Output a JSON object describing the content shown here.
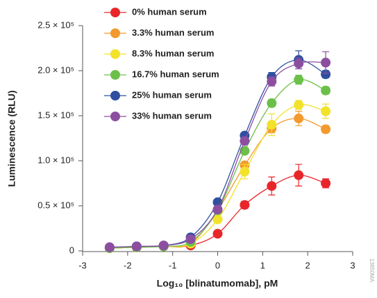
{
  "chart_data": {
    "type": "scatter",
    "x_label": "Log₁₀ [blinatumomab], pM",
    "y_label": "Luminescence (RLU)",
    "watermark": "13850MA",
    "xlim": [
      -3,
      3
    ],
    "xticks": [
      -3,
      -2,
      -1,
      0,
      1,
      2,
      3
    ],
    "ylim": [
      0,
      250000
    ],
    "yticks": [
      0,
      {
        "value": 50000,
        "label": "0.5 × 10⁵"
      },
      {
        "value": 100000,
        "label": "1.0 × 10⁵"
      },
      {
        "value": 150000,
        "label": "1.5 × 10⁵"
      },
      {
        "value": 200000,
        "label": "2.0 × 10⁵"
      },
      {
        "value": 250000,
        "label": "2.5 × 10⁵"
      }
    ],
    "legend": "upper left",
    "x": [
      -2.4,
      -1.8,
      -1.2,
      -0.6,
      0,
      0.6,
      1.2,
      1.8,
      2.4
    ],
    "series": [
      {
        "name": "0% human serum",
        "color": "#e8262a",
        "values": [
          3000,
          4000,
          5000,
          6000,
          19000,
          51000,
          72000,
          84000,
          75000
        ],
        "errors": [
          1000,
          1000,
          1000,
          1000,
          2000,
          4000,
          10000,
          12000,
          5000
        ]
      },
      {
        "name": "3.3% human serum",
        "color": "#f39a2e",
        "values": [
          3000,
          4000,
          5000,
          8000,
          45000,
          95000,
          136000,
          147000,
          135000
        ],
        "errors": [
          1000,
          1000,
          1000,
          1000,
          2000,
          3000,
          5000,
          8000,
          4000
        ]
      },
      {
        "name": "8.3% human serum",
        "color": "#f2e22a",
        "values": [
          3000,
          4000,
          5000,
          8000,
          35000,
          88000,
          140000,
          162000,
          155000
        ],
        "errors": [
          1000,
          1000,
          1000,
          1000,
          3000,
          8000,
          12000,
          5000,
          8000
        ]
      },
      {
        "name": "16.7% human serum",
        "color": "#6cc04a",
        "values": [
          3000,
          4000,
          5000,
          10000,
          45000,
          111000,
          164000,
          190000,
          178000
        ],
        "errors": [
          1000,
          1000,
          1000,
          1000,
          2000,
          3000,
          4000,
          5000,
          4000
        ]
      },
      {
        "name": "25% human serum",
        "color": "#2f4fa0",
        "values": [
          4000,
          5000,
          6000,
          15000,
          54000,
          128000,
          193000,
          212000,
          196000
        ],
        "errors": [
          1000,
          1000,
          1000,
          1000,
          2000,
          3000,
          5000,
          10000,
          4000
        ]
      },
      {
        "name": "33% human serum",
        "color": "#8c4fa0",
        "values": [
          4000,
          5000,
          6000,
          13000,
          46000,
          122000,
          188000,
          208000,
          209000
        ],
        "errors": [
          1000,
          1000,
          1000,
          1000,
          2000,
          3000,
          5000,
          6000,
          12000
        ]
      }
    ]
  }
}
